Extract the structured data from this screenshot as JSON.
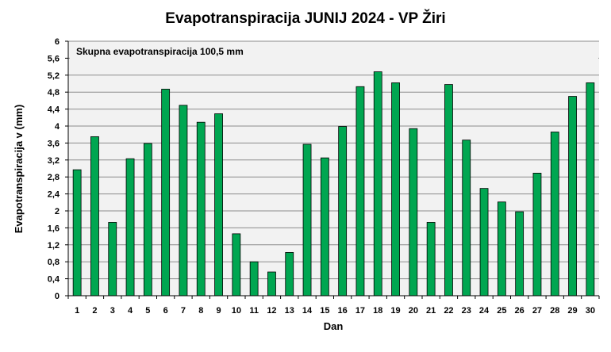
{
  "chart_data": {
    "type": "bar",
    "title": "Evapotranspiracija  JUNIJ 2024 - VP Žiri",
    "xlabel": "Dan",
    "ylabel": "Evapotranspiracija v  (mm)",
    "annotation": "Skupna evapotranspiracija  100,5 mm",
    "categories": [
      "1",
      "2",
      "3",
      "4",
      "5",
      "6",
      "7",
      "8",
      "9",
      "10",
      "11",
      "12",
      "13",
      "14",
      "15",
      "16",
      "17",
      "18",
      "19",
      "20",
      "21",
      "22",
      "23",
      "24",
      "25",
      "26",
      "27",
      "28",
      "29",
      "30"
    ],
    "values": [
      2.97,
      3.75,
      1.73,
      3.23,
      3.59,
      4.87,
      4.49,
      4.09,
      4.29,
      1.46,
      0.8,
      0.56,
      1.02,
      3.57,
      3.25,
      3.99,
      4.93,
      5.28,
      5.02,
      3.94,
      1.73,
      4.98,
      3.67,
      2.53,
      2.21,
      1.98,
      2.89,
      3.86,
      4.7,
      5.02
    ],
    "ylim": [
      0,
      6
    ],
    "yticks": [
      "0",
      "0,4",
      "0,8",
      "1,2",
      "1,6",
      "2",
      "2,4",
      "2,8",
      "3,2",
      "3,6",
      "4",
      "4,4",
      "4,8",
      "5,2",
      "5,6",
      "6"
    ],
    "grid": true,
    "bar_color": "#00a651",
    "bar_edge_color": "#000000",
    "plot_background": "#f2f2f2",
    "grid_color": "#8c8c8c"
  }
}
